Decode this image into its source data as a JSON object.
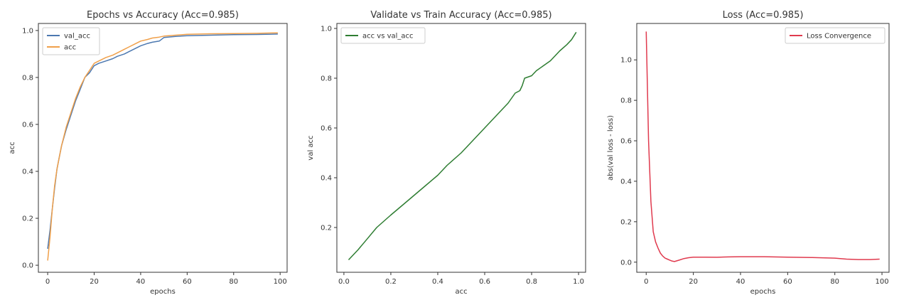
{
  "colors": {
    "val_acc": "#4c78b0",
    "acc": "#f0a04a",
    "acc_vs_val": "#2e7d32",
    "loss": "#e03a4e",
    "axis": "#333333"
  },
  "chart_data": [
    {
      "type": "line",
      "title": "Epochs vs Accuracy (Acc=0.985)",
      "xlabel": "epochs",
      "ylabel": "acc",
      "xlim": [
        -4,
        103
      ],
      "ylim": [
        -0.03,
        1.03
      ],
      "xticks": [
        0,
        20,
        40,
        60,
        80,
        100
      ],
      "yticks": [
        0.0,
        0.2,
        0.4,
        0.6,
        0.8,
        1.0
      ],
      "xtick_labels": [
        "0",
        "20",
        "40",
        "60",
        "80",
        "100"
      ],
      "ytick_labels": [
        "0.0",
        "0.2",
        "0.4",
        "0.6",
        "0.8",
        "1.0"
      ],
      "grid": false,
      "legend": "top-left",
      "series": [
        {
          "name": "val_acc",
          "color_key": "val_acc",
          "x": [
            0,
            1,
            2,
            3,
            4,
            5,
            6,
            8,
            10,
            12,
            14,
            16,
            18,
            20,
            22,
            25,
            28,
            30,
            33,
            35,
            38,
            40,
            43,
            45,
            48,
            50,
            55,
            60,
            70,
            80,
            90,
            99
          ],
          "y": [
            0.07,
            0.15,
            0.24,
            0.33,
            0.41,
            0.46,
            0.51,
            0.58,
            0.64,
            0.7,
            0.75,
            0.8,
            0.82,
            0.85,
            0.86,
            0.87,
            0.88,
            0.89,
            0.9,
            0.91,
            0.925,
            0.935,
            0.945,
            0.95,
            0.955,
            0.97,
            0.975,
            0.978,
            0.98,
            0.982,
            0.983,
            0.985
          ]
        },
        {
          "name": "acc",
          "color_key": "acc",
          "x": [
            0,
            1,
            2,
            3,
            4,
            5,
            6,
            8,
            10,
            12,
            14,
            16,
            18,
            20,
            22,
            25,
            28,
            30,
            33,
            35,
            38,
            40,
            43,
            45,
            48,
            50,
            55,
            60,
            70,
            80,
            90,
            99
          ],
          "y": [
            0.02,
            0.12,
            0.24,
            0.34,
            0.41,
            0.46,
            0.51,
            0.59,
            0.65,
            0.71,
            0.76,
            0.8,
            0.83,
            0.86,
            0.87,
            0.885,
            0.895,
            0.905,
            0.92,
            0.93,
            0.945,
            0.955,
            0.962,
            0.968,
            0.972,
            0.976,
            0.98,
            0.984,
            0.986,
            0.987,
            0.988,
            0.99
          ]
        }
      ]
    },
    {
      "type": "line",
      "title": "Validate vs Train Accuracy (Acc=0.985)",
      "xlabel": "acc",
      "ylabel": "val acc",
      "xlim": [
        -0.03,
        1.03
      ],
      "ylim": [
        0.02,
        1.02
      ],
      "xticks": [
        0.0,
        0.2,
        0.4,
        0.6,
        0.8,
        1.0
      ],
      "yticks": [
        0.2,
        0.4,
        0.6,
        0.8,
        1.0
      ],
      "xtick_labels": [
        "0.0",
        "0.2",
        "0.4",
        "0.6",
        "0.8",
        "1.0"
      ],
      "ytick_labels": [
        "0.2",
        "0.4",
        "0.6",
        "0.8",
        "1.0"
      ],
      "grid": false,
      "legend": "top-left",
      "series": [
        {
          "name": "acc vs val_acc",
          "color_key": "acc_vs_val",
          "x": [
            0.02,
            0.06,
            0.1,
            0.14,
            0.2,
            0.25,
            0.3,
            0.35,
            0.4,
            0.44,
            0.5,
            0.55,
            0.6,
            0.65,
            0.7,
            0.73,
            0.75,
            0.76,
            0.77,
            0.8,
            0.82,
            0.85,
            0.88,
            0.9,
            0.92,
            0.95,
            0.97,
            0.99
          ],
          "y": [
            0.07,
            0.11,
            0.155,
            0.2,
            0.25,
            0.29,
            0.33,
            0.37,
            0.41,
            0.45,
            0.5,
            0.55,
            0.6,
            0.65,
            0.7,
            0.74,
            0.75,
            0.77,
            0.8,
            0.81,
            0.83,
            0.85,
            0.87,
            0.89,
            0.91,
            0.935,
            0.955,
            0.985
          ]
        }
      ]
    },
    {
      "type": "line",
      "title": "Loss (Acc=0.985)",
      "xlabel": "epochs",
      "ylabel": "abs(val loss - loss)",
      "xlim": [
        -4,
        103
      ],
      "ylim": [
        -0.05,
        1.18
      ],
      "xticks": [
        0,
        20,
        40,
        60,
        80,
        100
      ],
      "yticks": [
        0.0,
        0.2,
        0.4,
        0.6,
        0.8,
        1.0
      ],
      "xtick_labels": [
        "0",
        "20",
        "40",
        "60",
        "80",
        "100"
      ],
      "ytick_labels": [
        "0.0",
        "0.2",
        "0.4",
        "0.6",
        "0.8",
        "1.0"
      ],
      "grid": false,
      "legend": "top-right",
      "series": [
        {
          "name": "Loss Convergence",
          "color_key": "loss",
          "x": [
            0,
            1,
            2,
            3,
            4,
            5,
            6,
            7,
            8,
            9,
            10,
            11,
            12,
            14,
            16,
            18,
            20,
            25,
            30,
            35,
            40,
            50,
            60,
            70,
            80,
            85,
            90,
            95,
            99
          ],
          "y": [
            1.14,
            0.6,
            0.3,
            0.15,
            0.1,
            0.07,
            0.045,
            0.03,
            0.02,
            0.015,
            0.01,
            0.005,
            0.003,
            0.01,
            0.018,
            0.022,
            0.025,
            0.025,
            0.024,
            0.026,
            0.027,
            0.027,
            0.025,
            0.023,
            0.02,
            0.015,
            0.013,
            0.013,
            0.015
          ]
        }
      ]
    }
  ]
}
